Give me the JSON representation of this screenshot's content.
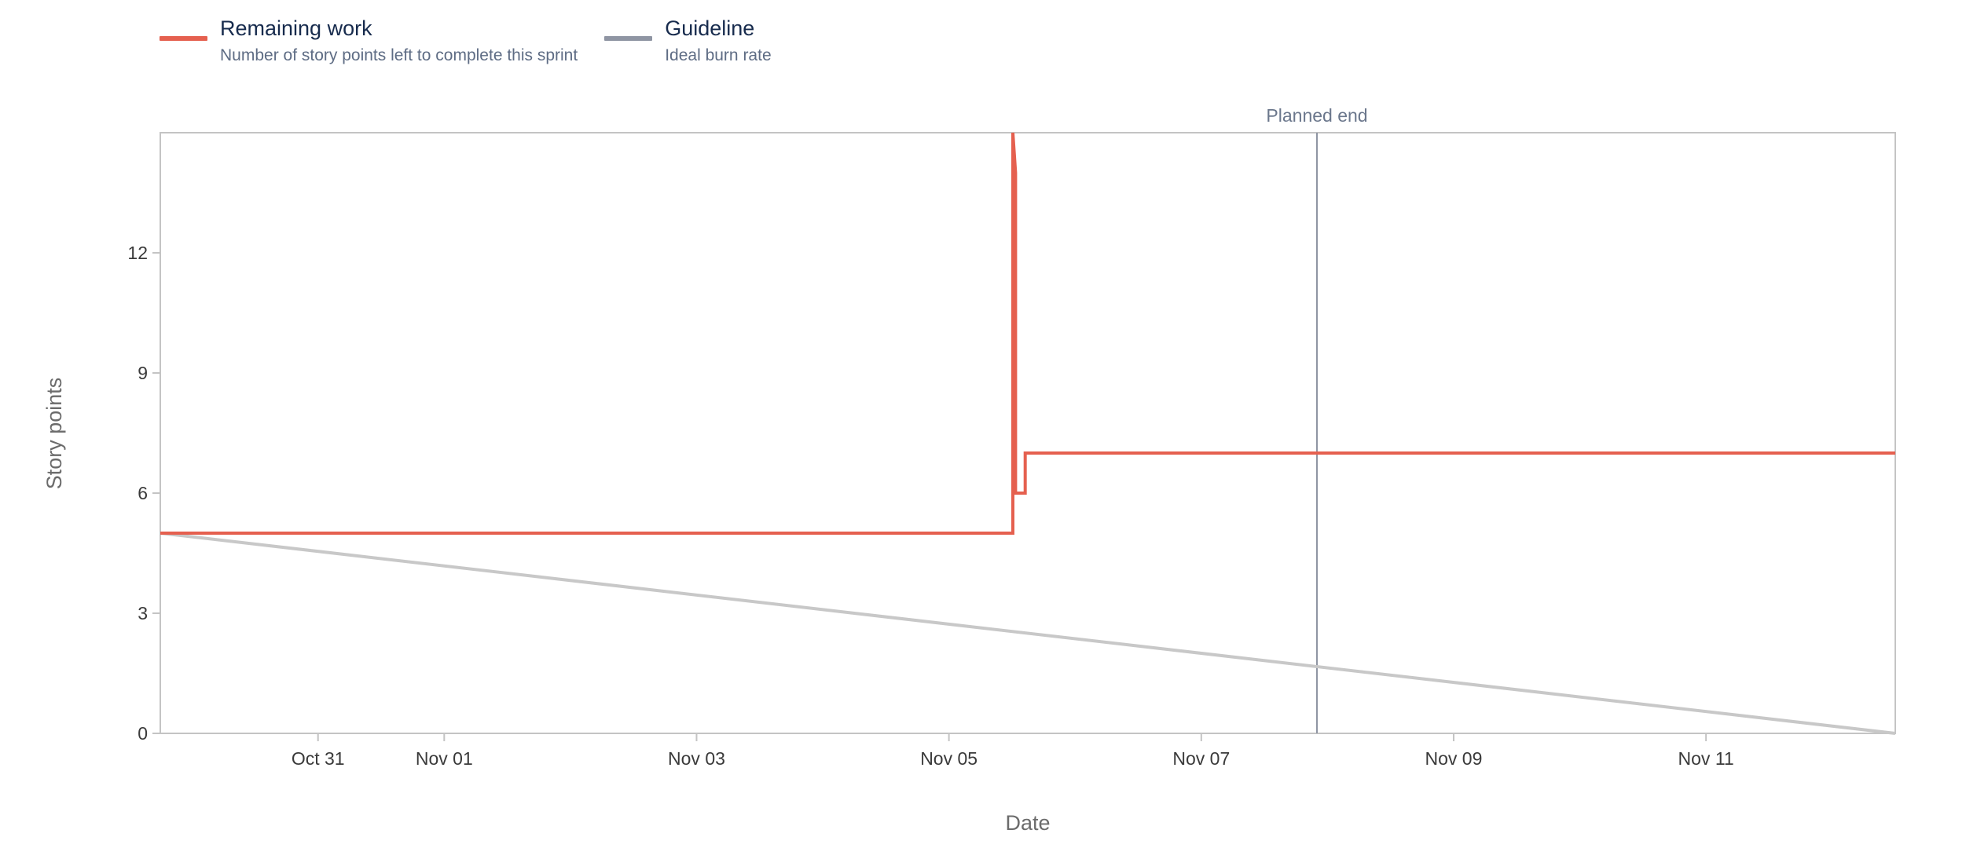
{
  "legend": [
    {
      "title": "Remaining work",
      "description": "Number of story points left to complete this sprint",
      "color": "#e5604f"
    },
    {
      "title": "Guideline",
      "description": "Ideal burn rate",
      "color": "#8f95a3"
    }
  ],
  "chart_data": {
    "type": "line",
    "xlabel": "Date",
    "ylabel": "Story points",
    "ylim": [
      0,
      15
    ],
    "xlim": [
      "2023-10-29T18:00",
      "2023-11-12T12:00"
    ],
    "yticks": [
      0,
      3,
      6,
      9,
      12
    ],
    "xticks": [
      {
        "date": "2023-10-31",
        "label": "Oct 31"
      },
      {
        "date": "2023-11-01",
        "label": "Nov 01"
      },
      {
        "date": "2023-11-03",
        "label": "Nov 03"
      },
      {
        "date": "2023-11-05",
        "label": "Nov 05"
      },
      {
        "date": "2023-11-07",
        "label": "Nov 07"
      },
      {
        "date": "2023-11-09",
        "label": "Nov 09"
      },
      {
        "date": "2023-11-11",
        "label": "Nov 11"
      }
    ],
    "grid": false,
    "legend_position": "top-left",
    "series": [
      {
        "name": "Remaining work",
        "color": "#e5604f",
        "step": true,
        "points": [
          {
            "x": "2023-10-29T18:00",
            "y": 5
          },
          {
            "x": "2023-11-05T12:10",
            "y": 5
          },
          {
            "x": "2023-11-05T12:10",
            "y": 15
          },
          {
            "x": "2023-11-05T12:40",
            "y": 14
          },
          {
            "x": "2023-11-05T12:40",
            "y": 6
          },
          {
            "x": "2023-11-05T14:30",
            "y": 6
          },
          {
            "x": "2023-11-05T14:30",
            "y": 7
          },
          {
            "x": "2023-11-12T12:00",
            "y": 7
          }
        ]
      },
      {
        "name": "Guideline",
        "color": "#c8c8c8",
        "step": false,
        "points": [
          {
            "x": "2023-10-29T18:00",
            "y": 5
          },
          {
            "x": "2023-11-12T12:00",
            "y": 0
          }
        ]
      }
    ],
    "annotations": [
      {
        "label": "Planned end",
        "x": "2023-11-07T22:00",
        "color": "#8f95a3"
      }
    ]
  }
}
